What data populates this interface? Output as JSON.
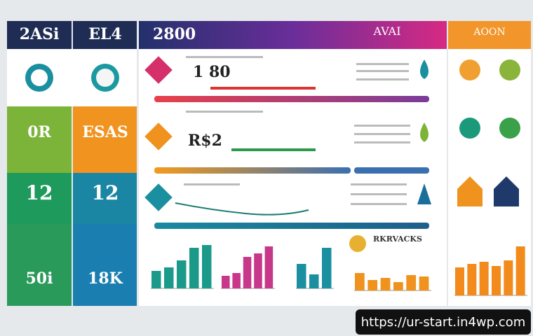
{
  "tiles": {
    "top_left": "2ASi",
    "top_right": "EL4",
    "mid_left": "0R",
    "mid_right": "ESAS",
    "row3_left": "12",
    "row3_right": "12",
    "bottom_left": "50i",
    "bottom_right": "18K"
  },
  "header": {
    "title": "2800",
    "subtitle": "AVAI",
    "right_title": "AOON"
  },
  "rows": {
    "first": "1 80",
    "second": "R$2",
    "callout": "RKRVACKS"
  },
  "bar_groups": [
    {
      "color": "#1b9a8a",
      "values": [
        25,
        30,
        40,
        58,
        62
      ]
    },
    {
      "color": "#c7388a",
      "values": [
        18,
        22,
        45,
        50,
        60
      ]
    },
    {
      "color": "#1a8fa0",
      "values": [
        35,
        20,
        58
      ]
    },
    {
      "color": "#f0921e",
      "values": [
        25,
        15,
        18,
        12,
        22,
        20
      ]
    },
    {
      "color": "#f28a1c",
      "values": [
        40,
        45,
        48,
        42,
        50,
        70
      ]
    }
  ],
  "watermark": "https://ur-start.in4wp.com"
}
